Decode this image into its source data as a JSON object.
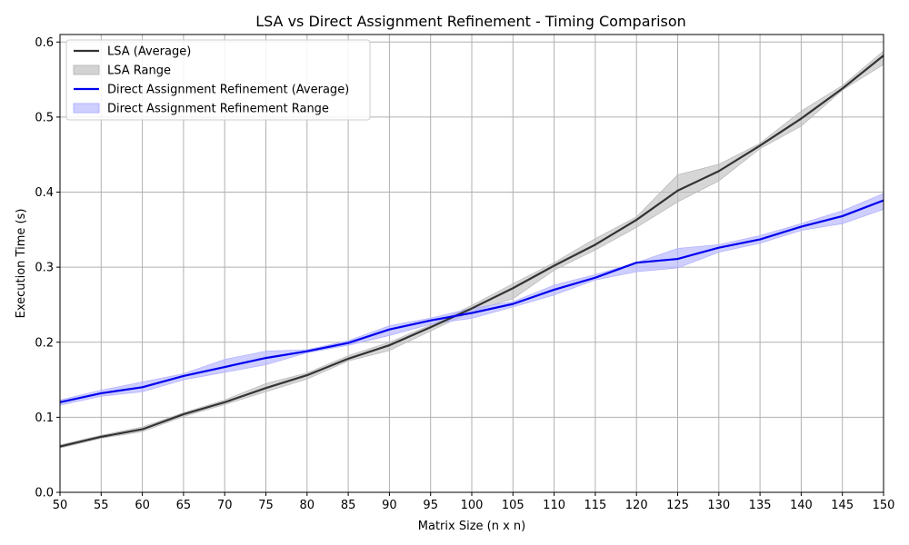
{
  "chart_data": {
    "type": "line",
    "title": "LSA vs Direct Assignment Refinement - Timing Comparison",
    "xlabel": "Matrix Size (n x n)",
    "ylabel": "Execution Time (s)",
    "xlim": [
      50,
      150
    ],
    "ylim": [
      0,
      0.61
    ],
    "x_ticks": [
      50,
      55,
      60,
      65,
      70,
      75,
      80,
      85,
      90,
      95,
      100,
      105,
      110,
      115,
      120,
      125,
      130,
      135,
      140,
      145,
      150
    ],
    "y_ticks": [
      0.0,
      0.1,
      0.2,
      0.3,
      0.4,
      0.5,
      0.6
    ],
    "y_tick_labels": [
      "0.0",
      "0.1",
      "0.2",
      "0.3",
      "0.4",
      "0.5",
      "0.6"
    ],
    "grid": true,
    "legend_position": "top-left",
    "x": [
      50,
      55,
      60,
      65,
      70,
      75,
      80,
      85,
      90,
      95,
      100,
      105,
      110,
      115,
      120,
      125,
      130,
      135,
      140,
      145,
      150
    ],
    "series": [
      {
        "name": "LSA (Average)",
        "range_name": "LSA Range",
        "color": "#333333",
        "fill_color": "#bbbbbb",
        "values": [
          0.061,
          0.074,
          0.084,
          0.104,
          0.12,
          0.139,
          0.156,
          0.178,
          0.196,
          0.22,
          0.245,
          0.272,
          0.302,
          0.33,
          0.363,
          0.402,
          0.428,
          0.462,
          0.498,
          0.538,
          0.582
        ],
        "range_low": [
          0.059,
          0.072,
          0.081,
          0.101,
          0.117,
          0.134,
          0.151,
          0.175,
          0.189,
          0.215,
          0.241,
          0.258,
          0.296,
          0.323,
          0.353,
          0.387,
          0.415,
          0.458,
          0.488,
          0.536,
          0.57
        ],
        "range_high": [
          0.063,
          0.076,
          0.087,
          0.106,
          0.123,
          0.145,
          0.159,
          0.182,
          0.2,
          0.223,
          0.249,
          0.278,
          0.306,
          0.338,
          0.367,
          0.423,
          0.437,
          0.465,
          0.508,
          0.542,
          0.588
        ]
      },
      {
        "name": "Direct Assignment Refinement (Average)",
        "range_name": "Direct Assignment Refinement Range",
        "color": "#0000ee",
        "fill_color": "#b3b3ff",
        "values": [
          0.12,
          0.132,
          0.14,
          0.155,
          0.167,
          0.179,
          0.188,
          0.199,
          0.217,
          0.229,
          0.239,
          0.251,
          0.27,
          0.286,
          0.306,
          0.311,
          0.326,
          0.337,
          0.354,
          0.368,
          0.389
        ],
        "range_low": [
          0.116,
          0.128,
          0.134,
          0.15,
          0.16,
          0.17,
          0.186,
          0.196,
          0.209,
          0.224,
          0.232,
          0.247,
          0.263,
          0.283,
          0.294,
          0.299,
          0.32,
          0.332,
          0.349,
          0.358,
          0.377
        ],
        "range_high": [
          0.123,
          0.136,
          0.147,
          0.158,
          0.177,
          0.188,
          0.19,
          0.202,
          0.222,
          0.232,
          0.245,
          0.254,
          0.276,
          0.29,
          0.306,
          0.325,
          0.33,
          0.342,
          0.358,
          0.375,
          0.398
        ]
      }
    ]
  }
}
